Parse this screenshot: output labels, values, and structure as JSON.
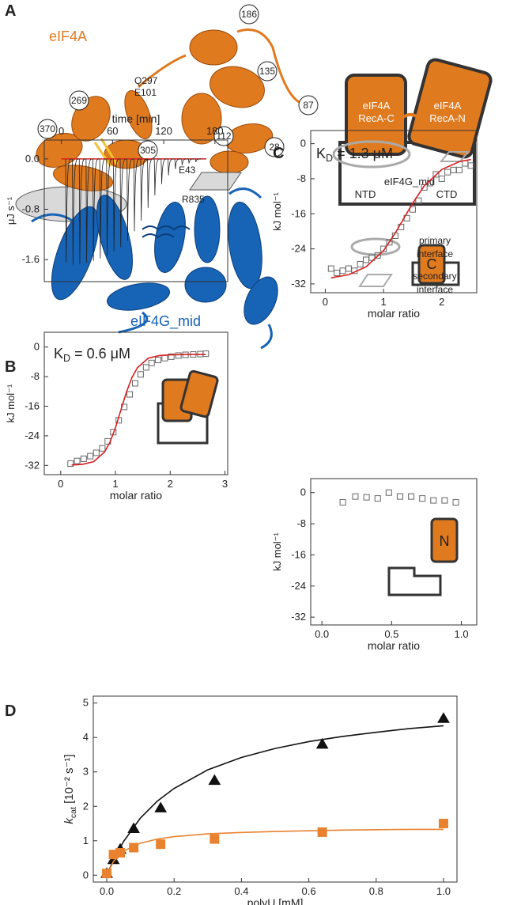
{
  "panel_a": {
    "label": "A",
    "protein_a": "eIF4A",
    "protein_g": "eIF4G_mid",
    "circled_residues": [
      "186",
      "135",
      "87",
      "269",
      "370",
      "305",
      "112",
      "28"
    ],
    "residue_labels": [
      "Q297",
      "E101",
      "E43",
      "R835"
    ],
    "schematic": {
      "recA_c": [
        "eIF4A",
        "RecA-C"
      ],
      "recA_n": [
        "eIF4A",
        "RecA-N"
      ],
      "domain": "eIF4G_mid",
      "ntd": "NTD",
      "ctd": "CTD"
    },
    "legend": [
      [
        "primary",
        "interface"
      ],
      [
        "secondary",
        "interface"
      ]
    ]
  },
  "chart_data": [
    {
      "type": "itc",
      "panel": "B",
      "xlabel": "time [min]",
      "xaxis": "top",
      "ylabel": "μJ s⁻¹",
      "xlim": [
        -20,
        195
      ],
      "xticks": [
        0,
        60,
        120,
        180
      ],
      "ylim": [
        -1.95,
        0.3
      ],
      "yticks": [
        {
          "value": 0,
          "label": "0.0"
        },
        -0.8,
        -1.6
      ],
      "series": [
        {
          "style": "line",
          "color": "#d62020",
          "x": [
            0,
            170
          ],
          "values": [
            0,
            0
          ]
        },
        {
          "style": "spike",
          "color": "#222222",
          "x": [
            5,
            13,
            21,
            29,
            37,
            45,
            53,
            61,
            69,
            77,
            85,
            93,
            101,
            109,
            117,
            125,
            133,
            141,
            149,
            157
          ],
          "values": [
            -1.65,
            -1.68,
            -1.67,
            -1.65,
            -1.62,
            -1.58,
            -1.53,
            -1.47,
            -1.4,
            -1.3,
            -1.15,
            -0.98,
            -0.78,
            -0.58,
            -0.4,
            -0.26,
            -0.16,
            -0.1,
            -0.07,
            -0.05
          ]
        }
      ]
    },
    {
      "type": "scatter",
      "xlabel": "molar ratio",
      "ylabel": "kJ mol⁻¹",
      "annotation": {
        "symbol": "K",
        "subscript": "D",
        "text": " = 0.6 μM"
      },
      "xlim": [
        -0.3,
        3.05
      ],
      "xticks": [
        0,
        1,
        2,
        3
      ],
      "ylim": [
        -34.5,
        4
      ],
      "yticks": [
        0,
        -8,
        -16,
        -24,
        -32
      ],
      "series": [
        {
          "style": "square",
          "filled": false,
          "color": "#666666",
          "x": [
            0.18,
            0.3,
            0.42,
            0.54,
            0.65,
            0.76,
            0.86,
            0.96,
            1.06,
            1.16,
            1.26,
            1.36,
            1.46,
            1.56,
            1.66,
            1.78,
            1.9,
            2.02,
            2.15,
            2.28,
            2.42,
            2.55,
            2.65
          ],
          "values": [
            -31.5,
            -30.8,
            -30.2,
            -29.5,
            -28.6,
            -27.4,
            -25.5,
            -23,
            -19.8,
            -16.2,
            -12.8,
            -9.8,
            -7.4,
            -5.5,
            -4.3,
            -3.5,
            -3,
            -2.6,
            -2.3,
            -2.1,
            -2,
            -1.9,
            -1.8
          ]
        },
        {
          "style": "line",
          "color": "#d62020",
          "x": [
            0.2,
            0.4,
            0.6,
            0.8,
            0.9,
            1,
            1.1,
            1.2,
            1.3,
            1.4,
            1.6,
            1.8,
            2,
            2.3,
            2.65
          ],
          "values": [
            -31.9,
            -31.7,
            -31,
            -28.4,
            -25.7,
            -21.8,
            -17,
            -12.2,
            -8.3,
            -5.6,
            -3,
            -2.3,
            -2.1,
            -2,
            -2
          ]
        }
      ]
    },
    {
      "type": "scatter",
      "panel": "C",
      "xlabel": "molar ratio",
      "ylabel": "kJ mol⁻¹",
      "annotation": {
        "symbol": "K",
        "subscript": "D",
        "text": " = 1.3 μM"
      },
      "inset_label": "C",
      "xlim": [
        -0.25,
        2.6
      ],
      "xticks": [
        0,
        1,
        2
      ],
      "ylim": [
        -34,
        3
      ],
      "yticks": [
        0,
        -8,
        -16,
        -24,
        -32
      ],
      "series": [
        {
          "style": "square",
          "filled": false,
          "color": "#666666",
          "x": [
            0.1,
            0.2,
            0.3,
            0.4,
            0.5,
            0.6,
            0.7,
            0.8,
            0.9,
            1,
            1.1,
            1.2,
            1.3,
            1.4,
            1.5,
            1.6,
            1.7,
            1.8,
            1.9,
            2,
            2.1,
            2.2,
            2.3,
            2.4,
            2.5
          ],
          "values": [
            -28.5,
            -29.5,
            -29,
            -28.5,
            -29,
            -27.5,
            -26.5,
            -26,
            -25.5,
            -24,
            -22.5,
            -21,
            -19,
            -17,
            -15,
            -13,
            -10,
            -9,
            -7,
            -8,
            -6.5,
            -6,
            -6,
            -4.5,
            -5
          ]
        },
        {
          "style": "line",
          "color": "#d62020",
          "x": [
            0.1,
            0.4,
            0.7,
            1,
            1.2,
            1.35,
            1.5,
            1.7,
            2,
            2.3,
            2.5
          ],
          "values": [
            -30.6,
            -29.9,
            -28.1,
            -24.4,
            -20.4,
            -17,
            -13.6,
            -9.6,
            -5.9,
            -4.1,
            -3.6
          ]
        }
      ]
    },
    {
      "type": "scatter",
      "xlabel": "molar ratio",
      "ylabel": "kJ mol⁻¹",
      "inset_label": "N",
      "xlim": [
        -0.08,
        1.11
      ],
      "xticks": [
        {
          "value": 0,
          "label": "0.0"
        },
        0.5,
        {
          "value": 1,
          "label": "1.0"
        }
      ],
      "ylim": [
        -34,
        3.6
      ],
      "yticks": [
        0,
        -8,
        -16,
        -24,
        -32
      ],
      "series": [
        {
          "style": "square",
          "filled": false,
          "color": "#666666",
          "x": [
            0.15,
            0.24,
            0.32,
            0.4,
            0.48,
            0.56,
            0.64,
            0.72,
            0.8,
            0.88,
            0.96
          ],
          "values": [
            -2.5,
            -1,
            -1.2,
            -1.5,
            0,
            -1,
            -1,
            -1.5,
            -2,
            -2,
            -2.5
          ]
        }
      ]
    },
    {
      "type": "scatter",
      "panel": "D",
      "xlabel": "polyU [mM]",
      "ylabel": {
        "symbol": "k",
        "subscript": "cat",
        "text": " [10⁻² s⁻¹]"
      },
      "xlim": [
        -0.04,
        1.04
      ],
      "xticks": [
        {
          "value": 0,
          "label": "0.0"
        },
        0.2,
        0.4,
        0.6,
        0.8,
        {
          "value": 1,
          "label": "1.0"
        }
      ],
      "ylim": [
        -0.2,
        5.2
      ],
      "yticks": [
        0,
        1,
        2,
        3,
        4,
        5
      ],
      "series": [
        {
          "style": "line",
          "color": "#111111",
          "x": [
            0,
            0.02,
            0.05,
            0.1,
            0.15,
            0.2,
            0.3,
            0.4,
            0.5,
            0.6,
            0.7,
            0.8,
            0.9,
            1
          ],
          "values": [
            0,
            0.44,
            0.98,
            1.66,
            2.15,
            2.52,
            3.06,
            3.42,
            3.68,
            3.88,
            4.03,
            4.15,
            4.26,
            4.34
          ]
        },
        {
          "style": "triangle",
          "filled": true,
          "color": "#111111",
          "x": [
            0,
            0.02,
            0.04,
            0.08,
            0.16,
            0.32,
            0.64,
            1
          ],
          "values": [
            0.05,
            0.45,
            0.75,
            1.35,
            1.95,
            2.75,
            3.8,
            4.55
          ]
        },
        {
          "style": "line",
          "color": "#e8822e",
          "x": [
            0,
            0.02,
            0.05,
            0.1,
            0.15,
            0.2,
            0.3,
            0.4,
            0.5,
            0.6,
            0.7,
            0.8,
            0.9,
            1
          ],
          "values": [
            0,
            0.4,
            0.7,
            0.93,
            1.05,
            1.12,
            1.2,
            1.24,
            1.27,
            1.29,
            1.31,
            1.32,
            1.33,
            1.33
          ]
        },
        {
          "style": "square",
          "filled": true,
          "color": "#e8822e",
          "x": [
            0,
            0.02,
            0.04,
            0.08,
            0.16,
            0.32,
            0.64,
            1
          ],
          "values": [
            0.05,
            0.6,
            0.65,
            0.8,
            0.9,
            1.05,
            1.25,
            1.5
          ]
        }
      ]
    }
  ]
}
